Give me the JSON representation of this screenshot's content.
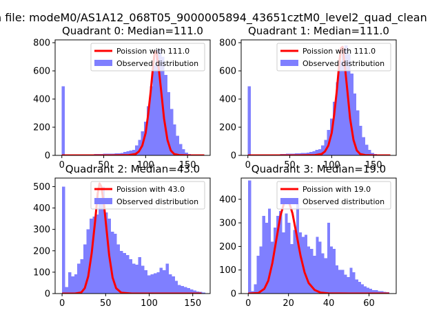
{
  "figure": {
    "suptitle": "n file: modeM0/AS1A12_068T05_9000005894_43651cztM0_level2_quad_clean"
  },
  "colors": {
    "poisson_line": "#ff0000",
    "observed_bars": "#7f7fff",
    "axis": "#000000",
    "background": "#ffffff"
  },
  "chart_data": [
    {
      "type": "bar",
      "title": "Quadrant 0: Median=111.0",
      "xlim": [
        -8,
        177
      ],
      "ylim": [
        0,
        820
      ],
      "xticks": [
        0,
        50,
        100,
        150
      ],
      "yticks": [
        0,
        200,
        400,
        600,
        800
      ],
      "legend_position": "top-right",
      "series": [
        {
          "name": "Poission with 111.0",
          "kind": "line",
          "x": [
            0,
            60,
            80,
            88,
            92,
            96,
            100,
            103,
            106,
            109,
            111,
            113,
            116,
            119,
            122,
            126,
            130,
            134,
            140,
            150,
            170
          ],
          "y": [
            0,
            0,
            2,
            10,
            28,
            70,
            160,
            290,
            450,
            640,
            740,
            730,
            600,
            430,
            260,
            110,
            35,
            10,
            2,
            0,
            0
          ]
        },
        {
          "name": "Observed distribution",
          "kind": "hist",
          "bin_start": 0,
          "bin_width": 3.5,
          "counts": [
            490,
            3,
            3,
            4,
            4,
            5,
            6,
            6,
            7,
            8,
            8,
            9,
            10,
            10,
            11,
            12,
            12,
            13,
            14,
            15,
            18,
            25,
            30,
            35,
            40,
            70,
            110,
            170,
            240,
            350,
            490,
            640,
            750,
            760,
            700,
            570,
            450,
            330,
            220,
            140,
            80,
            45,
            20,
            10,
            5,
            3,
            2,
            1,
            1,
            1
          ]
        }
      ]
    },
    {
      "type": "bar",
      "title": "Quadrant 1: Median=111.0",
      "xlim": [
        -8,
        177
      ],
      "ylim": [
        0,
        820
      ],
      "xticks": [
        0,
        50,
        100,
        150
      ],
      "yticks": [
        0,
        200,
        400,
        600,
        800
      ],
      "legend_position": "top-right",
      "series": [
        {
          "name": "Poission with 111.0",
          "kind": "line",
          "x": [
            0,
            60,
            80,
            88,
            92,
            96,
            100,
            103,
            106,
            109,
            111,
            113,
            116,
            119,
            122,
            126,
            130,
            134,
            140,
            150,
            170
          ],
          "y": [
            0,
            0,
            2,
            10,
            28,
            70,
            160,
            290,
            450,
            650,
            760,
            770,
            620,
            440,
            260,
            110,
            35,
            10,
            2,
            0,
            0
          ]
        },
        {
          "name": "Observed distribution",
          "kind": "hist",
          "bin_start": 0,
          "bin_width": 3.5,
          "counts": [
            490,
            3,
            3,
            4,
            4,
            5,
            6,
            6,
            7,
            8,
            8,
            9,
            10,
            11,
            12,
            13,
            14,
            15,
            16,
            18,
            20,
            25,
            30,
            38,
            45,
            70,
            110,
            180,
            260,
            380,
            520,
            670,
            760,
            780,
            720,
            580,
            440,
            320,
            210,
            130,
            75,
            40,
            18,
            9,
            4,
            2,
            2,
            1,
            1,
            1
          ]
        }
      ]
    },
    {
      "type": "bar",
      "title": "Quadrant 2: Median=43.0",
      "xlim": [
        -8,
        170
      ],
      "ylim": [
        0,
        540
      ],
      "xticks": [
        0,
        50,
        100,
        150
      ],
      "yticks": [
        0,
        100,
        200,
        300,
        400,
        500
      ],
      "legend_position": "top-right",
      "series": [
        {
          "name": "Poission with 43.0",
          "kind": "line",
          "x": [
            0,
            15,
            22,
            26,
            30,
            34,
            38,
            41,
            43,
            45,
            48,
            51,
            54,
            58,
            62,
            68,
            80,
            100,
            160
          ],
          "y": [
            0,
            0,
            5,
            25,
            80,
            190,
            340,
            470,
            515,
            500,
            420,
            300,
            180,
            75,
            25,
            4,
            0,
            0,
            0
          ]
        },
        {
          "name": "Observed distribution",
          "kind": "hist",
          "bin_start": 0,
          "bin_width": 3.5,
          "counts": [
            500,
            30,
            100,
            80,
            90,
            140,
            160,
            230,
            300,
            350,
            360,
            370,
            420,
            500,
            380,
            350,
            290,
            280,
            230,
            200,
            190,
            180,
            160,
            140,
            135,
            170,
            130,
            110,
            85,
            90,
            95,
            100,
            120,
            110,
            140,
            90,
            80,
            60,
            40,
            35,
            30,
            25,
            20,
            15,
            10,
            8,
            5
          ]
        }
      ]
    },
    {
      "type": "bar",
      "title": "Quadrant 3: Median=19.0",
      "xlim": [
        -3.5,
        73.5
      ],
      "ylim": [
        0,
        490
      ],
      "xticks": [
        0,
        20,
        40,
        60
      ],
      "yticks": [
        0,
        100,
        200,
        300,
        400
      ],
      "legend_position": "top-right",
      "series": [
        {
          "name": "Poission with 19.0",
          "kind": "line",
          "x": [
            0,
            5,
            8,
            10,
            12,
            14,
            16,
            18,
            19,
            20,
            22,
            24,
            26,
            28,
            30,
            33,
            36,
            40,
            50,
            70
          ],
          "y": [
            0,
            2,
            20,
            55,
            130,
            230,
            330,
            390,
            400,
            395,
            340,
            250,
            160,
            90,
            45,
            15,
            4,
            1,
            0,
            0
          ]
        },
        {
          "name": "Observed distribution",
          "kind": "hist",
          "bin_start": 0,
          "bin_width": 1.4,
          "counts": [
            480,
            10,
            40,
            160,
            200,
            330,
            300,
            360,
            220,
            280,
            330,
            350,
            260,
            340,
            300,
            210,
            270,
            380,
            260,
            240,
            250,
            200,
            190,
            160,
            240,
            220,
            170,
            150,
            300,
            200,
            190,
            120,
            100,
            100,
            80,
            70,
            110,
            90,
            60,
            50,
            40,
            30,
            25,
            20,
            15,
            15,
            10,
            10,
            8,
            6
          ]
        }
      ]
    }
  ]
}
